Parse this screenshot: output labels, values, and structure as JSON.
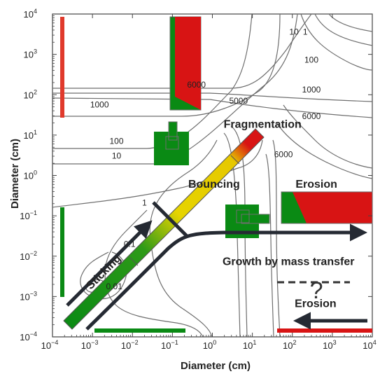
{
  "chart_data": {
    "type": "other",
    "xlabel": "Diameter (cm)",
    "ylabel": "Diameter (cm)",
    "xscale": "log",
    "yscale": "log",
    "xlim": [
      0.0001,
      10000
    ],
    "ylim": [
      0.0001,
      10000
    ],
    "x_ticks": [
      "10",
      "10",
      "10",
      "10",
      "10",
      "10",
      "10",
      "10",
      "10"
    ],
    "x_tick_exps": [
      "−4",
      "−3",
      "−2",
      "−1",
      "0",
      "1",
      "2",
      "3",
      "4"
    ],
    "y_ticks": [
      "10",
      "10",
      "10",
      "10",
      "10",
      "10",
      "10",
      "10",
      "10"
    ],
    "y_tick_exps": [
      "−4",
      "−3",
      "−2",
      "−1",
      "0",
      "1",
      "2",
      "3",
      "4"
    ],
    "grid": false,
    "contour_labels": [
      {
        "text": "6000",
        "x": 0.4,
        "y": 150
      },
      {
        "text": "1000",
        "x": 0.0015,
        "y": 48
      },
      {
        "text": "5000",
        "x": 4.5,
        "y": 60
      },
      {
        "text": "100",
        "x": 0.004,
        "y": 6
      },
      {
        "text": "10",
        "x": 0.004,
        "y": 2.6
      },
      {
        "text": "1",
        "x": 0.02,
        "y": 0.18
      },
      {
        "text": "0.1",
        "x": 0.0085,
        "y": 0.017
      },
      {
        "text": "0.01",
        "x": 0.0035,
        "y": 0.0015
      },
      {
        "text": "10",
        "x": 110,
        "y": 3100
      },
      {
        "text": "1",
        "x": 210,
        "y": 3100
      },
      {
        "text": "100",
        "x": 300,
        "y": 620
      },
      {
        "text": "1000",
        "x": 300,
        "y": 115
      },
      {
        "text": "6000",
        "x": 300,
        "y": 25
      },
      {
        "text": "6000",
        "x": 60,
        "y": 2.8
      }
    ],
    "regions": [
      {
        "label": "Fragmentation",
        "x": 18,
        "y": 15
      },
      {
        "label": "Bouncing",
        "x": 1.1,
        "y": 0.5
      },
      {
        "label": "Sticking",
        "x": 0.0022,
        "y": 0.0035
      },
      {
        "label": "Growth by mass transfer",
        "x": 80,
        "y": 0.006
      },
      {
        "label": "Erosion",
        "x": 400,
        "y": 0.5
      },
      {
        "label": "Erosion",
        "x": 380,
        "y": 0.00055
      },
      {
        "label": "?",
        "x": 400,
        "y": 0.0009
      }
    ],
    "colors": {
      "sticking": "#0a8a14",
      "bouncing": "#e8d800",
      "fragmentation": "#d81414",
      "arrow": "#252a33",
      "contour": "#6e6e6e"
    }
  }
}
